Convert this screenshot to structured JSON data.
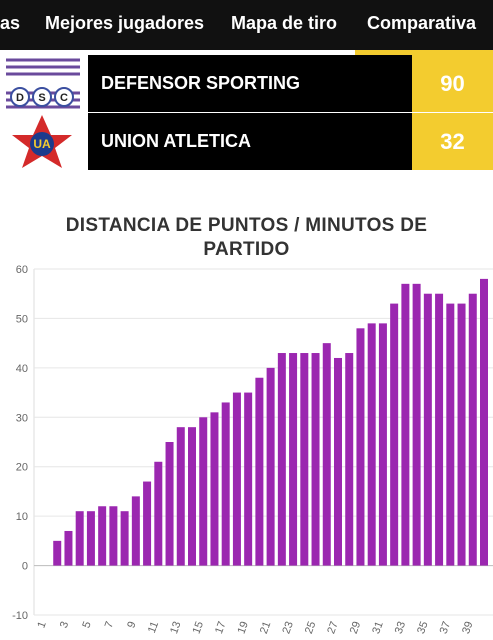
{
  "tabs": [
    "as",
    "Mejores jugadores",
    "Mapa de tiro",
    "Comparativa"
  ],
  "teams": [
    {
      "name": "DEFENSOR SPORTING",
      "score": 90,
      "logo_text": "DSC"
    },
    {
      "name": "UNION ATLETICA",
      "score": 32,
      "logo_text": "UA"
    }
  ],
  "chart_data": {
    "type": "bar",
    "title": "DISTANCIA DE PUNTOS / MINUTOS DE PARTIDO",
    "categories": [
      "1",
      null,
      "3",
      null,
      "5",
      null,
      "7",
      null,
      "9",
      null,
      "11",
      null,
      "13",
      null,
      "15",
      null,
      "17",
      null,
      "19",
      null,
      "21",
      null,
      "23",
      null,
      "25",
      null,
      "27",
      null,
      "29",
      null,
      "31",
      null,
      "33",
      null,
      "35",
      null,
      "37",
      null,
      "39",
      null
    ],
    "values": [
      0,
      5,
      7,
      11,
      11,
      12,
      12,
      11,
      14,
      17,
      21,
      25,
      28,
      28,
      30,
      31,
      33,
      35,
      35,
      38,
      40,
      43,
      43,
      43,
      43,
      45,
      42,
      43,
      48,
      49,
      49,
      53,
      57,
      57,
      55,
      55,
      53,
      53,
      55,
      58
    ],
    "color": "#9b27b0",
    "ylim": [
      -10,
      60
    ],
    "yticks": [
      -10,
      0,
      10,
      20,
      30,
      40,
      50,
      60
    ],
    "grid": true
  }
}
